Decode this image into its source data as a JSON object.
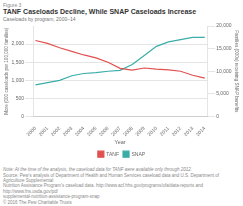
{
  "chart_data": {
    "type": "line",
    "title": "TANF Caseloads Decline, While SNAP Caseloads Increase",
    "subtitle": "Caseloads by program, 2000–14",
    "x": [
      2000,
      2001,
      2002,
      2003,
      2004,
      2005,
      2006,
      2007,
      2008,
      2009,
      2010,
      2011,
      2012,
      2013,
      2014
    ],
    "series": [
      {
        "name": "TANF",
        "color": "#e05050",
        "values": [
          2100,
          2020,
          1900,
          1800,
          1700,
          1620,
          1500,
          1330,
          1280,
          1340,
          1310,
          1290,
          1250,
          1140,
          1060
        ]
      },
      {
        "name": "SNAP",
        "color": "#3aada8",
        "axis": "y2",
        "values": [
          7000,
          7500,
          8000,
          9000,
          9500,
          9700,
          10000,
          10200,
          11500,
          13500,
          15500,
          16500,
          17000,
          17500,
          17500
        ]
      }
    ],
    "xlim": [
      1999.8,
      2014.2
    ],
    "xticks": [
      2000,
      2001,
      2002,
      2003,
      2004,
      2005,
      2006,
      2007,
      2008,
      2009,
      2010,
      2011,
      2012,
      2013,
      2014
    ],
    "ylim": [
      0,
      2500
    ],
    "yticks": [
      0,
      500,
      {
        "value": 1000,
        "label": "1,000"
      },
      {
        "value": 1500,
        "label": "1,500"
      },
      {
        "value": 2000,
        "label": "2,000"
      }
    ],
    "y2lim": [
      0,
      20000
    ],
    "y2ticks": [
      0,
      {
        "value": 5000,
        "label": "5,000"
      },
      {
        "value": 10000,
        "label": "10,000"
      },
      {
        "value": 15000,
        "label": "15,000"
      },
      {
        "value": 20000,
        "label": "20,000"
      }
    ],
    "xlabel": "Year",
    "ylabel": "More (000 caseloads per 100,000 families)",
    "y2label": "Families (000s) receiving SNAP benefits",
    "grid": true,
    "legend": "bottom",
    "annotations": [
      "Figure 3",
      "Note: At the time of the analysis, the caseload data for TANF were available only through 2012.",
      "Source: Pew’s analysis of Department of Health and Human Services caseload data and U.S. Department of Agriculture Supplemental",
      "Nutrition Assistance Program’s caseload data. http://www.acf.hhs.gov/programs/ofa/data-reports and http://www.fns.usda.gov/pd/",
      "supplemental-nutrition-assistance-program-snap",
      "© 2016 The Pew Charitable Trusts"
    ]
  }
}
